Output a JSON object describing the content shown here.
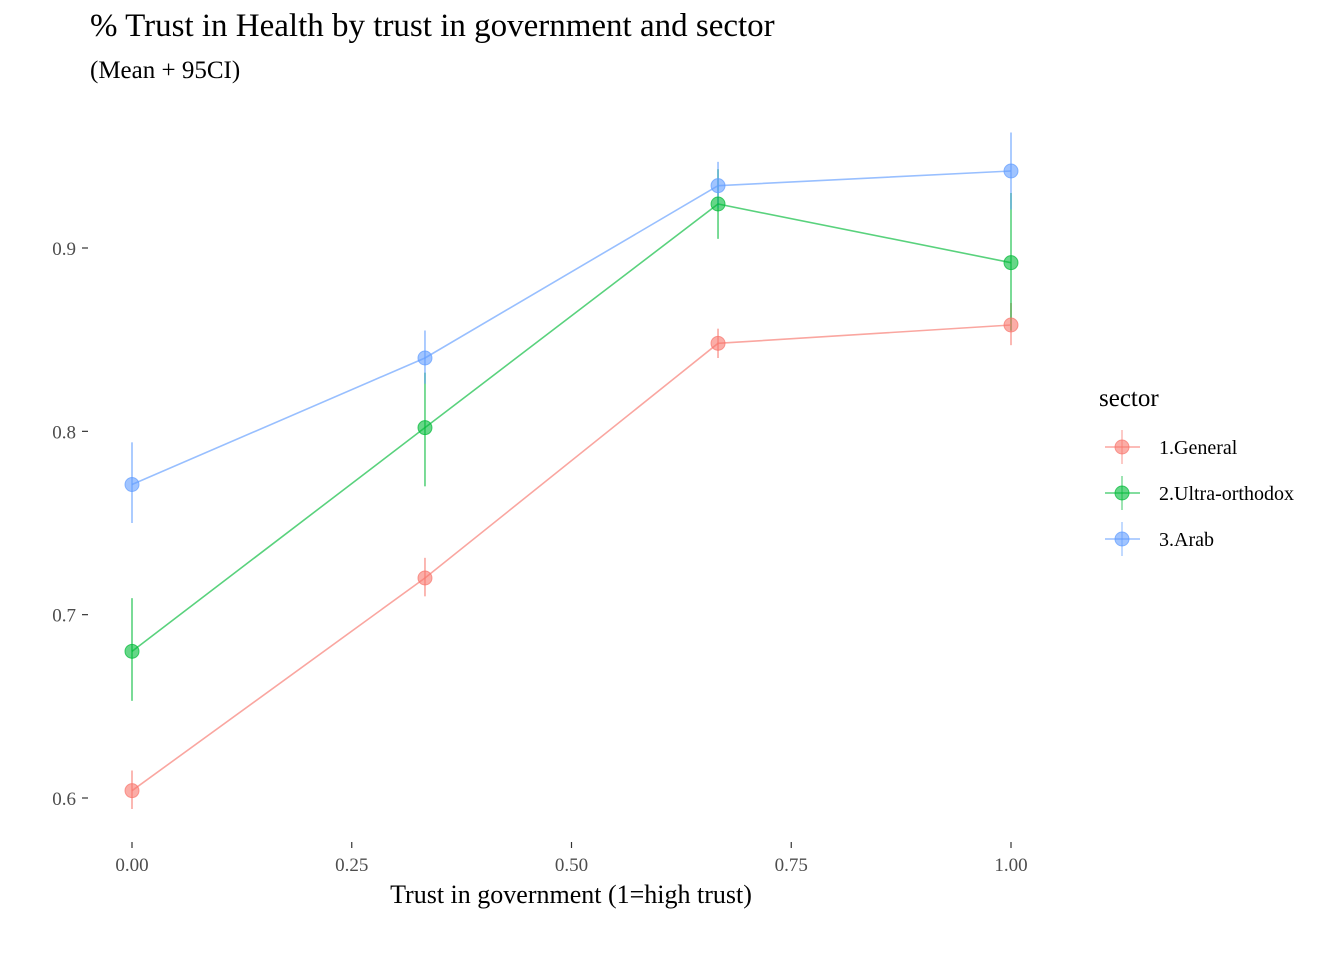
{
  "chart_data": {
    "type": "line",
    "title": "% Trust in Health by trust in government and sector",
    "subtitle": "(Mean + 95CI)",
    "xlabel": "Trust in government (1=high trust)",
    "ylabel": "",
    "x": [
      0,
      0.3333,
      0.6667,
      1.0
    ],
    "xlim": [
      -0.05,
      1.05
    ],
    "ylim": [
      0.575,
      0.97
    ],
    "x_ticks": [
      0,
      0.25,
      0.5,
      0.75,
      1.0
    ],
    "x_tick_labels": [
      "0.00",
      "0.25",
      "0.50",
      "0.75",
      "1.00"
    ],
    "y_ticks": [
      0.6,
      0.7,
      0.8,
      0.9
    ],
    "y_tick_labels": [
      "0.6",
      "0.7",
      "0.8",
      "0.9"
    ],
    "grid": false,
    "legend": {
      "title": "sector",
      "position": "right"
    },
    "series": [
      {
        "name": "1.General",
        "color": "#F8766D",
        "values": [
          0.604,
          0.72,
          0.848,
          0.858
        ],
        "ci_low": [
          0.594,
          0.71,
          0.84,
          0.847
        ],
        "ci_high": [
          0.615,
          0.731,
          0.856,
          0.87
        ]
      },
      {
        "name": "2.Ultra-orthodox",
        "color": "#00BA38",
        "values": [
          0.68,
          0.802,
          0.924,
          0.892
        ],
        "ci_low": [
          0.653,
          0.77,
          0.905,
          0.855
        ],
        "ci_high": [
          0.709,
          0.832,
          0.943,
          0.93
        ]
      },
      {
        "name": "3.Arab",
        "color": "#619CFF",
        "values": [
          0.771,
          0.84,
          0.934,
          0.942
        ],
        "ci_low": [
          0.75,
          0.826,
          0.922,
          0.921
        ],
        "ci_high": [
          0.794,
          0.855,
          0.947,
          0.963
        ]
      }
    ]
  }
}
